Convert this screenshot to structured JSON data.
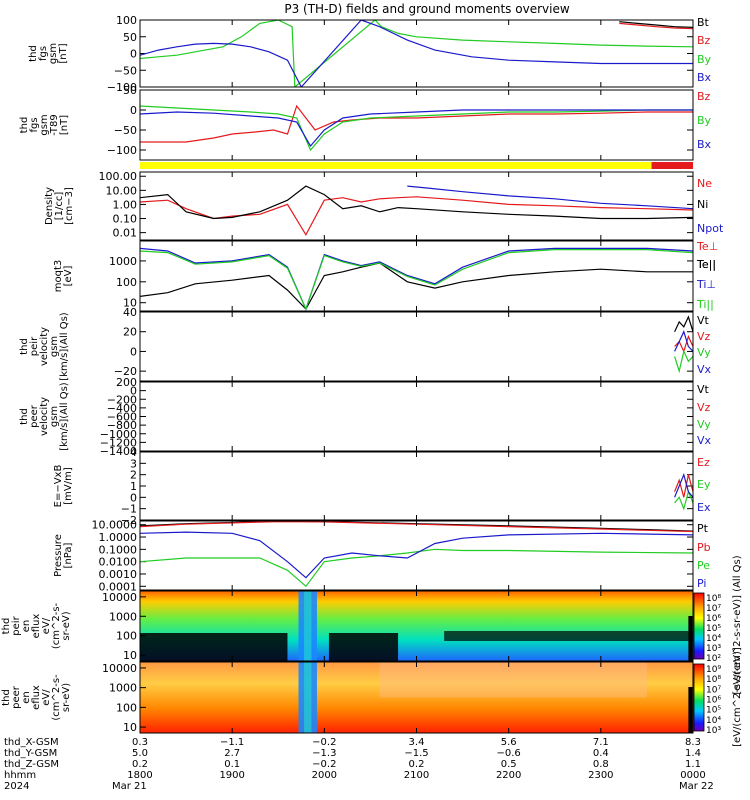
{
  "title": "P3 (TH-D) fields and ground moments overview",
  "colors": {
    "black": "#000000",
    "red": "#e41a1c",
    "green": "#22cc22",
    "blue": "#1a1acc",
    "yellow": "#ffff00"
  },
  "chart_data": [
    {
      "type": "line",
      "panel": "fgs",
      "ylabel_lines": [
        "thd",
        "fgs",
        "gsm",
        "[nT]"
      ],
      "ylim": [
        -100,
        100
      ],
      "yticks": [
        "100",
        "50",
        "0",
        "−50",
        "−100"
      ],
      "series": [
        {
          "name": "Bt",
          "color": "black",
          "x": [
            23.2,
            23.4,
            23.6,
            23.8,
            24.0
          ],
          "y": [
            95,
            90,
            85,
            80,
            78
          ]
        },
        {
          "name": "Bz",
          "color": "red",
          "x": [
            23.2,
            23.4,
            23.6,
            23.8,
            24.0
          ],
          "y": [
            90,
            85,
            80,
            76,
            74
          ]
        },
        {
          "name": "By",
          "color": "green",
          "x": [
            18.0,
            18.2,
            18.4,
            18.6,
            18.9,
            19.1,
            19.3,
            19.5,
            19.65,
            19.68,
            20.55,
            20.62,
            20.8,
            21.0,
            21.5,
            22.0,
            22.5,
            23.0,
            23.5,
            24.0
          ],
          "y": [
            -15,
            -10,
            -5,
            5,
            20,
            50,
            90,
            100,
            80,
            -100,
            100,
            80,
            60,
            50,
            40,
            35,
            30,
            25,
            22,
            20
          ]
        },
        {
          "name": "Bx",
          "color": "blue",
          "x": [
            18.0,
            18.2,
            18.4,
            18.6,
            18.8,
            19.0,
            19.2,
            19.4,
            19.6,
            19.75,
            20.4,
            20.6,
            20.9,
            21.2,
            21.6,
            22.0,
            22.5,
            23.0,
            23.5,
            24.0
          ],
          "y": [
            -5,
            10,
            20,
            28,
            30,
            28,
            20,
            5,
            -20,
            -100,
            100,
            80,
            40,
            10,
            -10,
            -20,
            -25,
            -30,
            -30,
            -30
          ]
        }
      ]
    },
    {
      "type": "line",
      "panel": "fgs-detrended",
      "ylabel_lines": [
        "thd",
        "fgs",
        "gsm",
        "-T89",
        "[nT]"
      ],
      "ylim": [
        -125,
        50
      ],
      "yticks": [
        "50",
        "0",
        "−50",
        "−100"
      ],
      "series": [
        {
          "name": "Bz",
          "color": "red",
          "x": [
            18.0,
            18.5,
            18.8,
            19.0,
            19.25,
            19.45,
            19.6,
            19.7,
            19.9,
            20.1,
            20.3,
            20.6,
            21.0,
            21.5,
            22.0,
            22.5,
            23.0,
            23.5,
            24.0
          ],
          "y": [
            -80,
            -80,
            -70,
            -60,
            -55,
            -50,
            -60,
            10,
            -50,
            -30,
            -25,
            -20,
            -20,
            -15,
            -10,
            -10,
            -8,
            -5,
            -5
          ]
        },
        {
          "name": "By",
          "color": "green",
          "x": [
            18.0,
            18.4,
            18.8,
            19.2,
            19.5,
            19.7,
            19.85,
            20.0,
            20.2,
            20.5,
            21.0,
            21.5,
            22.0,
            22.5,
            23.0,
            23.5,
            24.0
          ],
          "y": [
            10,
            5,
            0,
            -5,
            -10,
            -20,
            -100,
            -60,
            -30,
            -20,
            -15,
            -10,
            -5,
            -5,
            -3,
            0,
            0
          ]
        },
        {
          "name": "Bx",
          "color": "blue",
          "x": [
            18.0,
            18.4,
            18.8,
            19.2,
            19.5,
            19.7,
            19.85,
            20.0,
            20.2,
            20.5,
            21.0,
            21.5,
            22.0,
            22.5,
            23.0,
            23.5,
            24.0
          ],
          "y": [
            -10,
            -5,
            -8,
            -15,
            -20,
            -30,
            -90,
            -50,
            -20,
            -10,
            -5,
            0,
            0,
            0,
            0,
            0,
            0
          ]
        }
      ]
    },
    {
      "type": "line",
      "panel": "density",
      "log": true,
      "ylabel_lines": [
        "Density",
        "[1/cc]",
        "[cm−3]"
      ],
      "ylim": [
        0.003,
        200
      ],
      "yticks": [
        "100.00",
        "10.00",
        "1.00",
        "0.10",
        "0.01"
      ],
      "ytick_values": [
        100,
        10,
        1,
        0.1,
        0.01
      ],
      "series": [
        {
          "name": "Ne",
          "color": "red",
          "x": [
            18.0,
            18.3,
            18.5,
            18.8,
            19.0,
            19.3,
            19.6,
            19.8,
            20.0,
            20.2,
            20.4,
            20.6,
            20.8,
            21.0,
            21.5,
            22.0,
            22.5,
            23.0,
            23.5,
            24.0
          ],
          "y": [
            1.5,
            2.0,
            0.5,
            0.1,
            0.15,
            0.2,
            1.0,
            0.007,
            2.0,
            3.0,
            1.5,
            2.5,
            3.0,
            3.5,
            2.0,
            1.0,
            0.8,
            0.6,
            0.5,
            0.4
          ]
        },
        {
          "name": "Ni",
          "color": "black",
          "x": [
            18.0,
            18.3,
            18.5,
            18.8,
            19.0,
            19.3,
            19.6,
            19.8,
            20.0,
            20.2,
            20.4,
            20.6,
            20.8,
            21.0,
            21.5,
            22.0,
            22.5,
            23.0,
            23.5,
            24.0
          ],
          "y": [
            3.0,
            5.0,
            0.3,
            0.1,
            0.12,
            0.3,
            2.0,
            20.0,
            5.0,
            0.5,
            0.8,
            0.3,
            0.6,
            0.5,
            0.3,
            0.2,
            0.15,
            0.1,
            0.1,
            0.12
          ]
        },
        {
          "name": "Npot",
          "color": "blue",
          "x": [
            20.9,
            21.1,
            21.5,
            22.0,
            22.5,
            23.0,
            23.5,
            24.0
          ],
          "y": [
            20.0,
            15.0,
            8.0,
            4.0,
            2.5,
            1.2,
            0.8,
            0.5
          ]
        }
      ],
      "extra_labels": [
        {
          "text": "Te⊥",
          "color": "red"
        }
      ]
    },
    {
      "type": "line",
      "panel": "temperature",
      "log": true,
      "ylabel_lines": [
        "moqt3",
        "[eV]"
      ],
      "ylim": [
        4,
        9000
      ],
      "yticks": [
        "1000",
        "100",
        "10"
      ],
      "ytick_values": [
        1000,
        100,
        10
      ],
      "series": [
        {
          "name": "Te||",
          "color": "black",
          "x": [
            18.0,
            18.3,
            18.6,
            19.0,
            19.4,
            19.6,
            19.8,
            20.0,
            20.2,
            20.4,
            20.6,
            20.9,
            21.2,
            21.5,
            22.0,
            22.5,
            23.0,
            23.5,
            24.0
          ],
          "y": [
            20,
            30,
            80,
            120,
            200,
            40,
            5,
            200,
            300,
            500,
            800,
            100,
            50,
            100,
            200,
            300,
            400,
            300,
            300
          ]
        },
        {
          "name": "Ti⊥",
          "color": "blue",
          "x": [
            18.0,
            18.3,
            18.6,
            19.0,
            19.4,
            19.6,
            19.8,
            20.0,
            20.2,
            20.4,
            20.6,
            20.9,
            21.2,
            21.5,
            22.0,
            22.5,
            23.0,
            23.5,
            24.0
          ],
          "y": [
            4000,
            3000,
            800,
            1000,
            2000,
            500,
            5,
            2000,
            1000,
            600,
            900,
            200,
            80,
            500,
            3000,
            4000,
            4000,
            4000,
            3000
          ]
        },
        {
          "name": "Ti||",
          "color": "green",
          "x": [
            18.0,
            18.3,
            18.6,
            19.0,
            19.4,
            19.6,
            19.8,
            20.0,
            20.2,
            20.4,
            20.6,
            20.9,
            21.2,
            21.5,
            22.0,
            22.5,
            23.0,
            23.5,
            24.0
          ],
          "y": [
            3000,
            2500,
            700,
            900,
            1800,
            450,
            5,
            1800,
            900,
            550,
            800,
            180,
            70,
            400,
            2500,
            3500,
            3500,
            3500,
            2500
          ]
        }
      ]
    },
    {
      "type": "line",
      "panel": "ion-velocity",
      "ylabel_lines": [
        "thd",
        "peir",
        "velocity",
        "gsm",
        "[km/s](All Qs)"
      ],
      "ylim": [
        -30,
        40
      ],
      "yticks": [
        "40",
        "20",
        "0",
        "−20"
      ],
      "series": [
        {
          "name": "Vt",
          "color": "black",
          "x": [
            23.8,
            23.85,
            23.9,
            23.95,
            24.0
          ],
          "y": [
            20,
            30,
            25,
            35,
            20
          ]
        },
        {
          "name": "Vz",
          "color": "red",
          "x": [
            23.8,
            23.85,
            23.9,
            23.95,
            24.0
          ],
          "y": [
            5,
            10,
            0,
            15,
            5
          ]
        },
        {
          "name": "Vy",
          "color": "green",
          "x": [
            23.8,
            23.85,
            23.9,
            23.95,
            24.0
          ],
          "y": [
            -5,
            -20,
            0,
            -10,
            -5
          ]
        },
        {
          "name": "Vx",
          "color": "blue",
          "x": [
            23.8,
            23.85,
            23.9,
            23.95,
            24.0
          ],
          "y": [
            0,
            10,
            20,
            5,
            0
          ]
        }
      ]
    },
    {
      "type": "line",
      "panel": "electron-velocity",
      "ylabel_lines": [
        "thd",
        "peer",
        "velocity",
        "gsm",
        "[km/s](All Qs)"
      ],
      "ylim": [
        -1400,
        200
      ],
      "yticks": [
        "200",
        "0",
        "−200",
        "−400",
        "−600",
        "−800",
        "−1000",
        "−1200",
        "−1400"
      ],
      "series": [
        {
          "name": "Vt",
          "color": "black",
          "x": [],
          "y": []
        },
        {
          "name": "Vz",
          "color": "red",
          "x": [],
          "y": []
        },
        {
          "name": "Vy",
          "color": "green",
          "x": [],
          "y": []
        },
        {
          "name": "Vx",
          "color": "blue",
          "x": [],
          "y": []
        }
      ]
    },
    {
      "type": "line",
      "panel": "efield",
      "ylabel_lines": [
        "E=−VxB",
        "[mV/m]"
      ],
      "ylim": [
        -2,
        4
      ],
      "yticks": [
        "4",
        "3",
        "2",
        "1",
        "0",
        "−1",
        "−2"
      ],
      "series": [
        {
          "name": "Ez",
          "color": "red",
          "x": [
            23.8,
            23.85,
            23.9,
            23.95,
            24.0
          ],
          "y": [
            0.5,
            1.5,
            0,
            2,
            0.5
          ]
        },
        {
          "name": "Ey",
          "color": "green",
          "x": [
            23.8,
            23.85,
            23.9,
            23.95,
            24.0
          ],
          "y": [
            -0.5,
            0,
            -1,
            0.5,
            -0.5
          ]
        },
        {
          "name": "Ex",
          "color": "blue",
          "x": [
            23.8,
            23.85,
            23.9,
            23.95,
            24.0
          ],
          "y": [
            0,
            1,
            2,
            0.5,
            0
          ]
        }
      ]
    },
    {
      "type": "line",
      "panel": "pressure",
      "log": true,
      "ylabel_lines": [
        "Pressure",
        "[nPa]"
      ],
      "ylim": [
        5e-05,
        20
      ],
      "yticks": [
        "10.0000",
        "1.0000",
        "0.1000",
        "0.0100",
        "0.0010",
        "0.0001"
      ],
      "ytick_values": [
        10,
        1,
        0.1,
        0.01,
        0.001,
        0.0001
      ],
      "series": [
        {
          "name": "Pt",
          "color": "black",
          "x": [
            18.0,
            18.5,
            19.0,
            19.5,
            20.0,
            21.0,
            22.0,
            23.0,
            23.5,
            24.0
          ],
          "y": [
            8,
            12,
            15,
            20,
            18,
            12,
            8,
            5,
            4,
            3
          ]
        },
        {
          "name": "Pb",
          "color": "red",
          "x": [
            18.0,
            18.5,
            19.0,
            19.5,
            20.0,
            21.0,
            22.0,
            23.0,
            23.5,
            24.0
          ],
          "y": [
            7,
            11,
            14,
            18,
            17,
            11,
            7,
            4.5,
            3.5,
            2.8
          ]
        },
        {
          "name": "Pe",
          "color": "green",
          "x": [
            18.0,
            18.5,
            19.0,
            19.3,
            19.6,
            19.8,
            20.0,
            20.3,
            20.6,
            20.9,
            21.2,
            21.5,
            22.0,
            23.0,
            24.0
          ],
          "y": [
            0.01,
            0.02,
            0.02,
            0.02,
            0.002,
            0.0001,
            0.01,
            0.02,
            0.03,
            0.05,
            0.1,
            0.08,
            0.08,
            0.06,
            0.05
          ]
        },
        {
          "name": "Pi",
          "color": "blue",
          "x": [
            18.0,
            18.5,
            19.0,
            19.3,
            19.6,
            19.8,
            20.0,
            20.3,
            20.6,
            20.9,
            21.2,
            21.5,
            22.0,
            23.0,
            24.0
          ],
          "y": [
            2,
            2.5,
            2,
            0.5,
            0.01,
            0.0005,
            0.02,
            0.05,
            0.03,
            0.02,
            0.3,
            0.8,
            1.5,
            2,
            1.5
          ]
        }
      ]
    },
    {
      "type": "heatmap",
      "panel": "ion-eflux",
      "ylabel_lines": [
        "thd",
        "peir",
        "en",
        "eflux",
        "eV/",
        "(cm^2-s-",
        "sr-eV)"
      ],
      "yticks": [
        "10000",
        "1000",
        "100",
        "10"
      ],
      "colorbar_label": "[eV/(cm^2-s-sr-eV)] (All Qs)",
      "colorbar_ticks": [
        "10⁸",
        "10⁷",
        "10⁶",
        "10⁵",
        "10⁴",
        "10³",
        "10²"
      ]
    },
    {
      "type": "heatmap",
      "panel": "electron-eflux",
      "ylabel_lines": [
        "thd",
        "peer",
        "en",
        "eflux",
        "eV/",
        "(cm^2-s-",
        "sr-eV)"
      ],
      "yticks": [
        "10000",
        "1000",
        "100",
        "10"
      ],
      "colorbar_label": "[eV/(cm^2-s-sr-eV)]",
      "colorbar_ticks": [
        "10⁹",
        "10⁸",
        "10⁷",
        "10⁶",
        "10⁵",
        "10⁴",
        "10³"
      ]
    }
  ],
  "legend_extra": {
    "te_par": "Te||"
  },
  "xaxis": {
    "row_labels": [
      "thd_X-GSM",
      "thd_Y-GSM",
      "thd_Z-GSM",
      "hhmm",
      "2024"
    ],
    "columns": [
      {
        "t": 18.0,
        "v": [
          "0.3",
          "5.0",
          "0.2",
          "1800",
          "Mar 21"
        ]
      },
      {
        "t": 19.0,
        "v": [
          "−1.1",
          "2.7",
          "0.1",
          "1900",
          ""
        ]
      },
      {
        "t": 20.0,
        "v": [
          "−0.2",
          "−1.3",
          "−0.2",
          "2000",
          ""
        ]
      },
      {
        "t": 21.0,
        "v": [
          "3.4",
          "−1.5",
          "0.2",
          "2100",
          ""
        ]
      },
      {
        "t": 22.0,
        "v": [
          "5.6",
          "−0.6",
          "0.5",
          "2200",
          ""
        ]
      },
      {
        "t": 23.0,
        "v": [
          "7.1",
          "0.4",
          "0.8",
          "2300",
          ""
        ]
      },
      {
        "t": 24.0,
        "v": [
          "8.3",
          "1.4",
          "1.1",
          "0000",
          "Mar 22"
        ]
      }
    ]
  }
}
